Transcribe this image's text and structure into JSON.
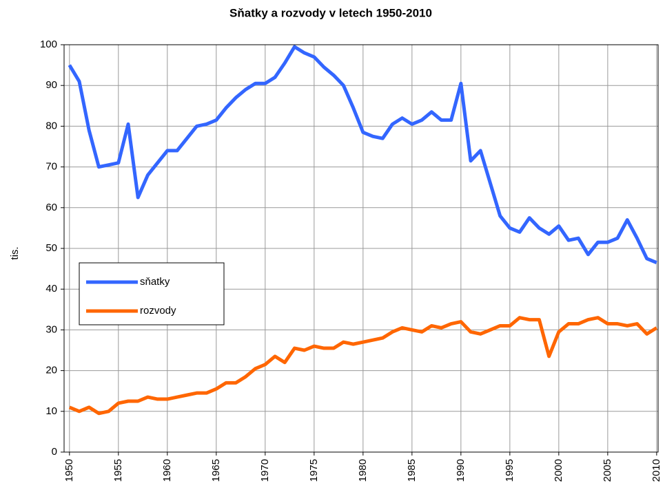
{
  "chart_data": {
    "type": "line",
    "title": "Sňatky a rozvody v letech 1950-2010",
    "y_label": "tis.",
    "x": [
      1950,
      1951,
      1952,
      1953,
      1954,
      1955,
      1956,
      1957,
      1958,
      1959,
      1960,
      1961,
      1962,
      1963,
      1964,
      1965,
      1966,
      1967,
      1968,
      1969,
      1970,
      1971,
      1972,
      1973,
      1974,
      1975,
      1976,
      1977,
      1978,
      1979,
      1980,
      1981,
      1982,
      1983,
      1984,
      1985,
      1986,
      1987,
      1988,
      1989,
      1990,
      1991,
      1992,
      1993,
      1994,
      1995,
      1996,
      1997,
      1998,
      1999,
      2000,
      2001,
      2002,
      2003,
      2004,
      2005,
      2006,
      2007,
      2008,
      2009,
      2010
    ],
    "series": [
      {
        "name": "sňatky",
        "color": "#3366ff",
        "values": [
          95,
          91,
          79,
          70,
          70.5,
          71,
          80.5,
          62.5,
          68,
          71,
          74,
          74,
          77,
          80,
          80.5,
          81.5,
          84.5,
          87,
          89,
          90.5,
          90.5,
          92,
          95.5,
          99.5,
          98,
          97,
          94.5,
          92.5,
          90,
          84.5,
          78.5,
          77.5,
          77,
          80.5,
          82,
          80.5,
          81.5,
          83.5,
          81.5,
          81.5,
          90.5,
          71.5,
          74,
          66,
          58,
          55,
          54,
          57.5,
          55,
          53.5,
          55.5,
          52,
          52.5,
          48.5,
          51.5,
          51.5,
          52.5,
          57,
          52.5,
          47.5,
          46.5
        ]
      },
      {
        "name": "rozvody",
        "color": "#ff6600",
        "values": [
          11,
          10,
          11,
          9.5,
          10,
          12,
          12.5,
          12.5,
          13.5,
          13,
          13,
          13.5,
          14,
          14.5,
          14.5,
          15.5,
          17,
          17,
          18.5,
          20.5,
          21.5,
          23.5,
          22,
          25.5,
          25,
          26,
          25.5,
          25.5,
          27,
          26.5,
          27,
          27.5,
          28,
          29.5,
          30.5,
          30,
          29.5,
          31,
          30.5,
          31.5,
          32,
          29.5,
          29,
          30,
          31,
          31,
          33,
          32.5,
          32.5,
          23.5,
          29.5,
          31.5,
          31.5,
          32.5,
          33,
          31.5,
          31.5,
          31,
          31.5,
          29,
          30.5
        ]
      }
    ],
    "xlim": [
      1949.45,
      2010.15
    ],
    "xticks": [
      1950,
      1955,
      1960,
      1965,
      1970,
      1975,
      1980,
      1985,
      1990,
      1995,
      2000,
      2005,
      2010
    ],
    "ylim": [
      0,
      100
    ],
    "yticks": [
      0,
      10,
      20,
      30,
      40,
      50,
      60,
      70,
      80,
      90,
      100
    ],
    "grid": true
  }
}
